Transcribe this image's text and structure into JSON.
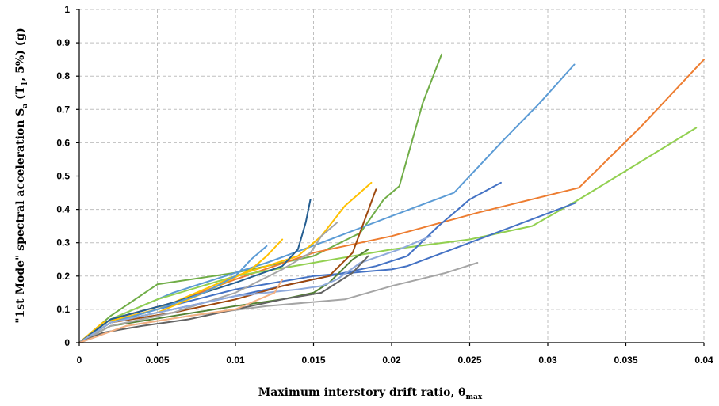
{
  "chart_data": {
    "type": "line",
    "xlabel": {
      "main": "Maximum interstory drift ratio, θ",
      "sub": "max"
    },
    "ylabel": {
      "p1": "\"1st Mode\" spectral acceleration S",
      "p2": "a",
      "p3": " (T",
      "p4": "1",
      "p5": ", 5%) (g)"
    },
    "xlim": [
      0,
      0.04
    ],
    "ylim": [
      0,
      1
    ],
    "x_ticks": [
      "0",
      "0.005",
      "0.01",
      "0.015",
      "0.02",
      "0.025",
      "0.03",
      "0.035",
      "0.04"
    ],
    "y_ticks": [
      "0",
      "0.1",
      "0.2",
      "0.3",
      "0.4",
      "0.5",
      "0.6",
      "0.7",
      "0.8",
      "0.9",
      "1"
    ],
    "grid": true,
    "legend": "none",
    "series": [
      {
        "color": "#70ad47",
        "points": [
          [
            0,
            0
          ],
          [
            0.002,
            0.08
          ],
          [
            0.005,
            0.175
          ],
          [
            0.01,
            0.21
          ],
          [
            0.015,
            0.26
          ],
          [
            0.018,
            0.33
          ],
          [
            0.0195,
            0.43
          ],
          [
            0.0205,
            0.47
          ],
          [
            0.022,
            0.72
          ],
          [
            0.0232,
            0.865
          ]
        ]
      },
      {
        "color": "#5b9bd5",
        "points": [
          [
            0,
            0
          ],
          [
            0.002,
            0.07
          ],
          [
            0.006,
            0.15
          ],
          [
            0.012,
            0.24
          ],
          [
            0.0155,
            0.3
          ],
          [
            0.02,
            0.38
          ],
          [
            0.024,
            0.45
          ],
          [
            0.027,
            0.6
          ],
          [
            0.0295,
            0.72
          ],
          [
            0.0317,
            0.835
          ]
        ]
      },
      {
        "color": "#ed7d31",
        "points": [
          [
            0,
            0
          ],
          [
            0.002,
            0.07
          ],
          [
            0.006,
            0.12
          ],
          [
            0.01,
            0.19
          ],
          [
            0.015,
            0.27
          ],
          [
            0.02,
            0.32
          ],
          [
            0.0255,
            0.39
          ],
          [
            0.032,
            0.465
          ],
          [
            0.036,
            0.65
          ],
          [
            0.04,
            0.85
          ]
        ]
      },
      {
        "color": "#92d050",
        "points": [
          [
            0,
            0
          ],
          [
            0.002,
            0.07
          ],
          [
            0.005,
            0.13
          ],
          [
            0.01,
            0.2
          ],
          [
            0.015,
            0.24
          ],
          [
            0.02,
            0.28
          ],
          [
            0.025,
            0.31
          ],
          [
            0.029,
            0.35
          ],
          [
            0.032,
            0.43
          ],
          [
            0.0395,
            0.645
          ]
        ]
      },
      {
        "color": "#4472c4",
        "points": [
          [
            0,
            0
          ],
          [
            0.002,
            0.06
          ],
          [
            0.005,
            0.1
          ],
          [
            0.01,
            0.16
          ],
          [
            0.015,
            0.2
          ],
          [
            0.02,
            0.22
          ],
          [
            0.021,
            0.23
          ],
          [
            0.025,
            0.3
          ],
          [
            0.0318,
            0.42
          ]
        ]
      },
      {
        "color": "#4472c4",
        "points": [
          [
            0,
            0
          ],
          [
            0.002,
            0.06
          ],
          [
            0.006,
            0.1
          ],
          [
            0.01,
            0.14
          ],
          [
            0.015,
            0.19
          ],
          [
            0.019,
            0.23
          ],
          [
            0.021,
            0.26
          ],
          [
            0.023,
            0.35
          ],
          [
            0.025,
            0.43
          ],
          [
            0.027,
            0.48
          ]
        ]
      },
      {
        "color": "#a5a5a5",
        "points": [
          [
            0,
            0
          ],
          [
            0.003,
            0.05
          ],
          [
            0.007,
            0.08
          ],
          [
            0.012,
            0.11
          ],
          [
            0.017,
            0.13
          ],
          [
            0.02,
            0.17
          ],
          [
            0.0235,
            0.21
          ],
          [
            0.0255,
            0.24
          ]
        ]
      },
      {
        "color": "#ffc000",
        "points": [
          [
            0,
            0
          ],
          [
            0.0015,
            0.06
          ],
          [
            0.005,
            0.1
          ],
          [
            0.01,
            0.2
          ],
          [
            0.014,
            0.26
          ],
          [
            0.0155,
            0.32
          ],
          [
            0.017,
            0.41
          ],
          [
            0.0187,
            0.48
          ]
        ]
      },
      {
        "color": "#548235",
        "points": [
          [
            0,
            0
          ],
          [
            0.002,
            0.05
          ],
          [
            0.006,
            0.08
          ],
          [
            0.01,
            0.11
          ],
          [
            0.013,
            0.13
          ],
          [
            0.015,
            0.15
          ],
          [
            0.016,
            0.18
          ],
          [
            0.0175,
            0.25
          ],
          [
            0.0185,
            0.28
          ]
        ]
      },
      {
        "color": "#9e480e",
        "points": [
          [
            0,
            0
          ],
          [
            0.002,
            0.06
          ],
          [
            0.006,
            0.09
          ],
          [
            0.01,
            0.13
          ],
          [
            0.013,
            0.17
          ],
          [
            0.016,
            0.2
          ],
          [
            0.0175,
            0.27
          ],
          [
            0.019,
            0.46
          ]
        ]
      },
      {
        "color": "#255e91",
        "points": [
          [
            0,
            0
          ],
          [
            0.002,
            0.07
          ],
          [
            0.006,
            0.12
          ],
          [
            0.01,
            0.18
          ],
          [
            0.013,
            0.23
          ],
          [
            0.014,
            0.28
          ],
          [
            0.0145,
            0.36
          ],
          [
            0.0148,
            0.43
          ]
        ]
      },
      {
        "color": "#a5a5a5",
        "points": [
          [
            0,
            0
          ],
          [
            0.002,
            0.05
          ],
          [
            0.006,
            0.09
          ],
          [
            0.01,
            0.15
          ],
          [
            0.013,
            0.22
          ],
          [
            0.0148,
            0.27
          ],
          [
            0.0155,
            0.32
          ],
          [
            0.0165,
            0.36
          ]
        ]
      },
      {
        "color": "#ffc000",
        "points": [
          [
            0,
            0
          ],
          [
            0.002,
            0.06
          ],
          [
            0.005,
            0.09
          ],
          [
            0.008,
            0.15
          ],
          [
            0.011,
            0.22
          ],
          [
            0.012,
            0.26
          ],
          [
            0.013,
            0.31
          ]
        ]
      },
      {
        "color": "#5b9bd5",
        "points": [
          [
            0,
            0
          ],
          [
            0.002,
            0.06
          ],
          [
            0.005,
            0.1
          ],
          [
            0.008,
            0.15
          ],
          [
            0.01,
            0.2
          ],
          [
            0.011,
            0.25
          ],
          [
            0.012,
            0.29
          ]
        ]
      },
      {
        "color": "#8faadc",
        "points": [
          [
            0,
            0
          ],
          [
            0.002,
            0.06
          ],
          [
            0.006,
            0.1
          ],
          [
            0.01,
            0.14
          ],
          [
            0.014,
            0.16
          ],
          [
            0.0155,
            0.17
          ],
          [
            0.0165,
            0.19
          ],
          [
            0.018,
            0.24
          ],
          [
            0.0205,
            0.28
          ],
          [
            0.0225,
            0.32
          ]
        ]
      },
      {
        "color": "#636363",
        "points": [
          [
            0,
            0
          ],
          [
            0.0015,
            0.03
          ],
          [
            0.004,
            0.05
          ],
          [
            0.007,
            0.07
          ],
          [
            0.01,
            0.1
          ],
          [
            0.013,
            0.13
          ],
          [
            0.0155,
            0.15
          ],
          [
            0.0175,
            0.21
          ],
          [
            0.0185,
            0.26
          ]
        ]
      },
      {
        "color": "#f4b183",
        "points": [
          [
            0,
            0
          ],
          [
            0.003,
            0.05
          ],
          [
            0.007,
            0.08
          ],
          [
            0.01,
            0.1
          ],
          [
            0.012,
            0.14
          ],
          [
            0.0125,
            0.15
          ],
          [
            0.013,
            0.19
          ]
        ]
      }
    ]
  }
}
